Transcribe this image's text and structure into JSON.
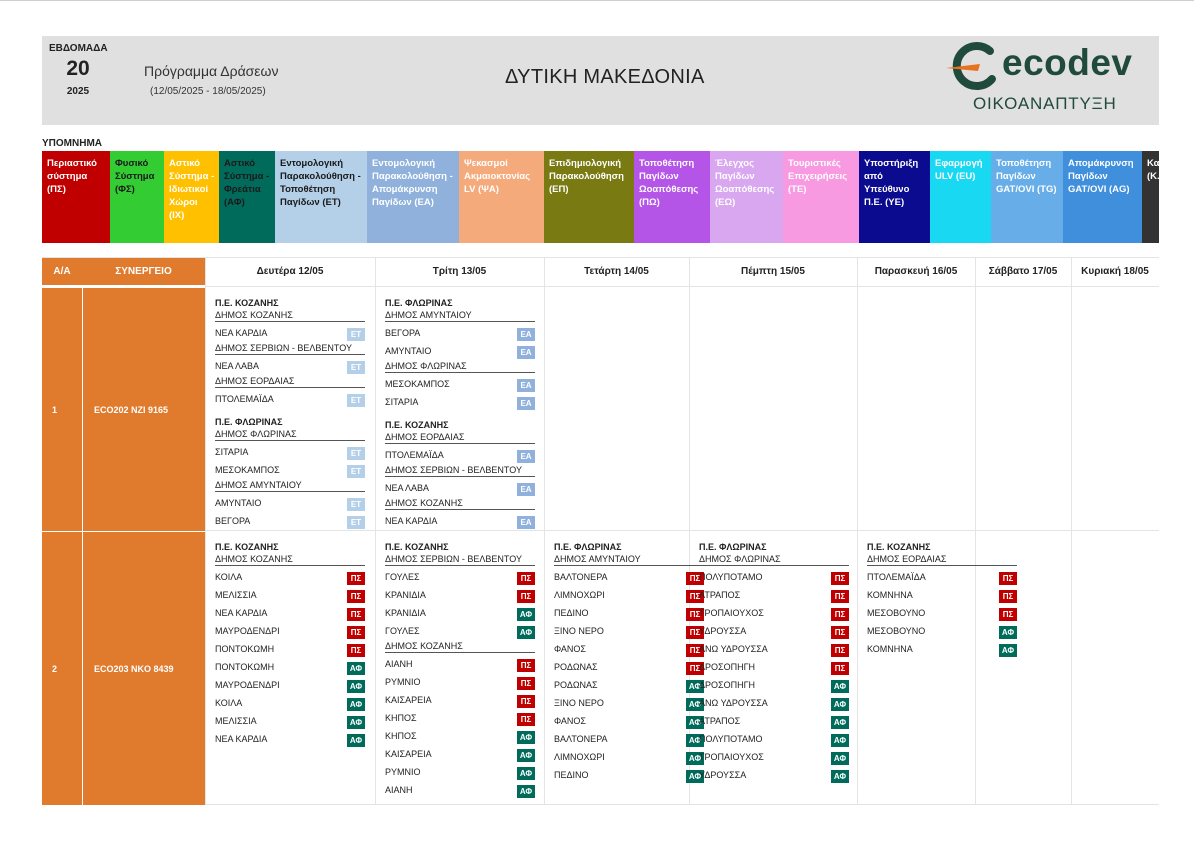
{
  "header": {
    "week_label": "ΕΒΔΟΜΑΔΑ",
    "week_number": "20",
    "year": "2025",
    "program_title": "Πρόγραμμα Δράσεων",
    "date_range": "(12/05/2025 - 18/05/2025)",
    "region": "ΔΥΤΙΚΗ ΜΑΚΕΔΟΝΙΑ",
    "logo_text": "ecodev",
    "logo_subtitle": "ΟΙΚΟΑΝΑΠΤΥΞΗ"
  },
  "legend": {
    "title": "ΥΠΟΜΝΗΜΑ",
    "items": [
      {
        "label": "Περιαστικό σύστημα (ΠΣ)",
        "bg": "#c00000",
        "fg": "#ffffff"
      },
      {
        "label": "Φυσικό Σύστημα (ΦΣ)",
        "bg": "#33cc33",
        "fg": "#1a1a1a"
      },
      {
        "label": "Αστικό Σύστημα - Ιδιωτικοί Χώροι (ΙΧ)",
        "bg": "#ffc000",
        "fg": "#ffffff"
      },
      {
        "label": "Αστικό Σύστημα - Φρεάτια (ΑΦ)",
        "bg": "#006b5b",
        "fg": "#1a1a1a"
      },
      {
        "label": "Εντομολογική Παρακολούθηση - Τοποθέτηση Παγίδων (ΕΤ)",
        "bg": "#b4cfe8",
        "fg": "#1a1a1a"
      },
      {
        "label": "Εντομολογική Παρακολούθηση - Απομάκρυνση Παγίδων (ΕΑ)",
        "bg": "#8fb1dc",
        "fg": "#ffffff"
      },
      {
        "label": "Ψεκασμοί Ακμαιοκτονίας LV (ΨΑ)",
        "bg": "#f4aa7a",
        "fg": "#ffffff"
      },
      {
        "label": "Επιδημιολογική Παρακολούθηση (ΕΠ)",
        "bg": "#7a7a12",
        "fg": "#ffffff"
      },
      {
        "label": "Τοποθέτηση Παγίδων Ωοαπόθεσης (ΠΩ)",
        "bg": "#b455e8",
        "fg": "#ffffff"
      },
      {
        "label": "Έλεγχος Παγίδων Ωοαπόθεσης (ΕΩ)",
        "bg": "#d8a7ef",
        "fg": "#ffffff"
      },
      {
        "label": "Τουριστικές Επιχειρήσεις (ΤΕ)",
        "bg": "#f79ae2",
        "fg": "#ffffff"
      },
      {
        "label": "Υποστήριξη από Υπεύθυνο Π.Ε. (ΥΕ)",
        "bg": "#0b0b8f",
        "fg": "#ffffff"
      },
      {
        "label": "Εφαρμογή ULV (EU)",
        "bg": "#19d9f2",
        "fg": "#ffffff"
      },
      {
        "label": "Τοποθέτηση Παγίδων GAT/OVI (TG)",
        "bg": "#67aee9",
        "fg": "#ffffff"
      },
      {
        "label": "Απομάκρυνση Παγίδων GAT/OVI (AG)",
        "bg": "#3f8fdc",
        "fg": "#ffffff"
      },
      {
        "label": "Κα... ελ... (Κ...",
        "bg": "#333333",
        "fg": "#ffffff"
      }
    ]
  },
  "schedule": {
    "col_aa": "Α/Α",
    "col_team": "ΣΥΝΕΡΓΕΙΟ",
    "days": [
      "Δευτέρα 12/05",
      "Τρίτη 13/05",
      "Τετάρτη 14/05",
      "Πέμπτη 15/05",
      "Παρασκευή 16/05",
      "Σάββατο 17/05",
      "Κυριακή 18/05"
    ],
    "badge_colors": {
      "ΕΤ": "#b4cfe8",
      "ΕΑ": "#8fb1dc",
      "ΠΣ": "#c00000",
      "ΑΦ": "#006b5b"
    },
    "rows": [
      {
        "aa": "1",
        "team": "ECO202  NZI 9165",
        "days": [
          [
            {
              "pe": "Π.Ε. ΚΟΖΑΝΗΣ",
              "groups": [
                {
                  "dimos": "ΔΗΜΟΣ ΚΟΖΑΝΗΣ",
                  "items": [
                    [
                      "ΝΕΑ ΚΑΡΔΙΑ",
                      "ΕΤ"
                    ]
                  ]
                },
                {
                  "dimos": "ΔΗΜΟΣ ΣΕΡΒΙΩΝ - ΒΕΛΒΕΝΤΟΥ",
                  "items": [
                    [
                      "ΝΕΑ ΛΑΒΑ",
                      "ΕΤ"
                    ]
                  ]
                },
                {
                  "dimos": "ΔΗΜΟΣ ΕΟΡΔΑΙΑΣ",
                  "items": [
                    [
                      "ΠΤΟΛΕΜΑΪΔΑ",
                      "ΕΤ"
                    ]
                  ]
                }
              ]
            },
            {
              "pe": "Π.Ε. ΦΛΩΡΙΝΑΣ",
              "groups": [
                {
                  "dimos": "ΔΗΜΟΣ ΦΛΩΡΙΝΑΣ",
                  "items": [
                    [
                      "ΣΙΤΑΡΙΑ",
                      "ΕΤ"
                    ],
                    [
                      "ΜΕΣΟΚΑΜΠΟΣ",
                      "ΕΤ"
                    ]
                  ]
                },
                {
                  "dimos": "ΔΗΜΟΣ ΑΜΥΝΤΑΙΟΥ",
                  "items": [
                    [
                      "ΑΜΥΝΤΑΙΟ",
                      "ΕΤ"
                    ],
                    [
                      "ΒΕΓΟΡΑ",
                      "ΕΤ"
                    ]
                  ]
                }
              ]
            }
          ],
          [
            {
              "pe": "Π.Ε. ΦΛΩΡΙΝΑΣ",
              "groups": [
                {
                  "dimos": "ΔΗΜΟΣ ΑΜΥΝΤΑΙΟΥ",
                  "items": [
                    [
                      "ΒΕΓΟΡΑ",
                      "ΕΑ"
                    ],
                    [
                      "ΑΜΥΝΤΑΙΟ",
                      "ΕΑ"
                    ]
                  ]
                },
                {
                  "dimos": "ΔΗΜΟΣ ΦΛΩΡΙΝΑΣ",
                  "items": [
                    [
                      "ΜΕΣΟΚΑΜΠΟΣ",
                      "ΕΑ"
                    ],
                    [
                      "ΣΙΤΑΡΙΑ",
                      "ΕΑ"
                    ]
                  ]
                }
              ]
            },
            {
              "pe": "Π.Ε. ΚΟΖΑΝΗΣ",
              "groups": [
                {
                  "dimos": "ΔΗΜΟΣ ΕΟΡΔΑΙΑΣ",
                  "items": [
                    [
                      "ΠΤΟΛΕΜΑΪΔΑ",
                      "ΕΑ"
                    ]
                  ]
                },
                {
                  "dimos": "ΔΗΜΟΣ ΣΕΡΒΙΩΝ - ΒΕΛΒΕΝΤΟΥ",
                  "items": [
                    [
                      "ΝΕΑ ΛΑΒΑ",
                      "ΕΑ"
                    ]
                  ]
                },
                {
                  "dimos": "ΔΗΜΟΣ ΚΟΖΑΝΗΣ",
                  "items": [
                    [
                      "ΝΕΑ ΚΑΡΔΙΑ",
                      "ΕΑ"
                    ]
                  ]
                }
              ]
            }
          ],
          [],
          [],
          [],
          [],
          []
        ]
      },
      {
        "aa": "2",
        "team": "ECO203  NKO 8439",
        "days": [
          [
            {
              "pe": "Π.Ε. ΚΟΖΑΝΗΣ",
              "groups": [
                {
                  "dimos": "ΔΗΜΟΣ ΚΟΖΑΝΗΣ",
                  "items": [
                    [
                      "ΚΟΙΛΑ",
                      "ΠΣ"
                    ],
                    [
                      "ΜΕΛΙΣΣΙΑ",
                      "ΠΣ"
                    ],
                    [
                      "ΝΕΑ ΚΑΡΔΙΑ",
                      "ΠΣ"
                    ],
                    [
                      "ΜΑΥΡΟΔΕΝΔΡΙ",
                      "ΠΣ"
                    ],
                    [
                      "ΠΟΝΤΟΚΩΜΗ",
                      "ΠΣ"
                    ],
                    [
                      "ΠΟΝΤΟΚΩΜΗ",
                      "ΑΦ"
                    ],
                    [
                      "ΜΑΥΡΟΔΕΝΔΡΙ",
                      "ΑΦ"
                    ],
                    [
                      "ΚΟΙΛΑ",
                      "ΑΦ"
                    ],
                    [
                      "ΜΕΛΙΣΣΙΑ",
                      "ΑΦ"
                    ],
                    [
                      "ΝΕΑ ΚΑΡΔΙΑ",
                      "ΑΦ"
                    ]
                  ]
                }
              ]
            }
          ],
          [
            {
              "pe": "Π.Ε. ΚΟΖΑΝΗΣ",
              "groups": [
                {
                  "dimos": "ΔΗΜΟΣ ΣΕΡΒΙΩΝ - ΒΕΛΒΕΝΤΟΥ",
                  "items": [
                    [
                      "ΓΟΥΛΕΣ",
                      "ΠΣ"
                    ],
                    [
                      "ΚΡΑΝΙΔΙΑ",
                      "ΠΣ"
                    ],
                    [
                      "ΚΡΑΝΙΔΙΑ",
                      "ΑΦ"
                    ],
                    [
                      "ΓΟΥΛΕΣ",
                      "ΑΦ"
                    ]
                  ]
                },
                {
                  "dimos": "ΔΗΜΟΣ ΚΟΖΑΝΗΣ",
                  "items": [
                    [
                      "ΑΙΑΝΗ",
                      "ΠΣ"
                    ],
                    [
                      "ΡΥΜΝΙΟ",
                      "ΠΣ"
                    ],
                    [
                      "ΚΑΙΣΑΡΕΙΑ",
                      "ΠΣ"
                    ],
                    [
                      "ΚΗΠΟΣ",
                      "ΠΣ"
                    ],
                    [
                      "ΚΗΠΟΣ",
                      "ΑΦ"
                    ],
                    [
                      "ΚΑΙΣΑΡΕΙΑ",
                      "ΑΦ"
                    ],
                    [
                      "ΡΥΜΝΙΟ",
                      "ΑΦ"
                    ],
                    [
                      "ΑΙΑΝΗ",
                      "ΑΦ"
                    ]
                  ]
                }
              ]
            }
          ],
          [
            {
              "pe": "Π.Ε. ΦΛΩΡΙΝΑΣ",
              "groups": [
                {
                  "dimos": "ΔΗΜΟΣ ΑΜΥΝΤΑΙΟΥ",
                  "items": [
                    [
                      "ΒΑΛΤΟΝΕΡΑ",
                      "ΠΣ"
                    ],
                    [
                      "ΛΙΜΝΟΧΩΡΙ",
                      "ΠΣ"
                    ],
                    [
                      "ΠΕΔΙΝΟ",
                      "ΠΣ"
                    ],
                    [
                      "ΞΙΝΟ ΝΕΡΟ",
                      "ΠΣ"
                    ],
                    [
                      "ΦΑΝΟΣ",
                      "ΠΣ"
                    ],
                    [
                      "ΡΟΔΩΝΑΣ",
                      "ΠΣ"
                    ],
                    [
                      "ΡΟΔΩΝΑΣ",
                      "ΑΦ"
                    ],
                    [
                      "ΞΙΝΟ ΝΕΡΟ",
                      "ΑΦ"
                    ],
                    [
                      "ΦΑΝΟΣ",
                      "ΑΦ"
                    ],
                    [
                      "ΒΑΛΤΟΝΕΡΑ",
                      "ΑΦ"
                    ],
                    [
                      "ΛΙΜΝΟΧΩΡΙ",
                      "ΑΦ"
                    ],
                    [
                      "ΠΕΔΙΝΟ",
                      "ΑΦ"
                    ]
                  ]
                }
              ]
            }
          ],
          [
            {
              "pe": "Π.Ε. ΦΛΩΡΙΝΑΣ",
              "groups": [
                {
                  "dimos": "ΔΗΜΟΣ ΦΛΩΡΙΝΑΣ",
                  "items": [
                    [
                      "ΠΟΛΥΠΟΤΑΜΟ",
                      "ΠΣ"
                    ],
                    [
                      "ΑΤΡΑΠΟΣ",
                      "ΠΣ"
                    ],
                    [
                      "ΤΡΟΠΑΙΟΥΧΟΣ",
                      "ΠΣ"
                    ],
                    [
                      "ΥΔΡΟΥΣΣΑ",
                      "ΠΣ"
                    ],
                    [
                      "ΑΝΩ ΥΔΡΟΥΣΣΑ",
                      "ΠΣ"
                    ],
                    [
                      "ΔΡΟΣΟΠΗΓΗ",
                      "ΠΣ"
                    ],
                    [
                      "ΔΡΟΣΟΠΗΓΗ",
                      "ΑΦ"
                    ],
                    [
                      "ΑΝΩ ΥΔΡΟΥΣΣΑ",
                      "ΑΦ"
                    ],
                    [
                      "ΑΤΡΑΠΟΣ",
                      "ΑΦ"
                    ],
                    [
                      "ΠΟΛΥΠΟΤΑΜΟ",
                      "ΑΦ"
                    ],
                    [
                      "ΤΡΟΠΑΙΟΥΧΟΣ",
                      "ΑΦ"
                    ],
                    [
                      "ΥΔΡΟΥΣΣΑ",
                      "ΑΦ"
                    ]
                  ]
                }
              ]
            }
          ],
          [
            {
              "pe": "Π.Ε. ΚΟΖΑΝΗΣ",
              "groups": [
                {
                  "dimos": "ΔΗΜΟΣ ΕΟΡΔΑΙΑΣ",
                  "items": [
                    [
                      "ΠΤΟΛΕΜΑΪΔΑ",
                      "ΠΣ"
                    ],
                    [
                      "ΚΟΜΝΗΝΑ",
                      "ΠΣ"
                    ],
                    [
                      "ΜΕΣΟΒΟΥΝΟ",
                      "ΠΣ"
                    ],
                    [
                      "ΜΕΣΟΒΟΥΝΟ",
                      "ΑΦ"
                    ],
                    [
                      "ΚΟΜΝΗΝΑ",
                      "ΑΦ"
                    ]
                  ]
                }
              ]
            }
          ],
          [],
          []
        ]
      }
    ]
  }
}
